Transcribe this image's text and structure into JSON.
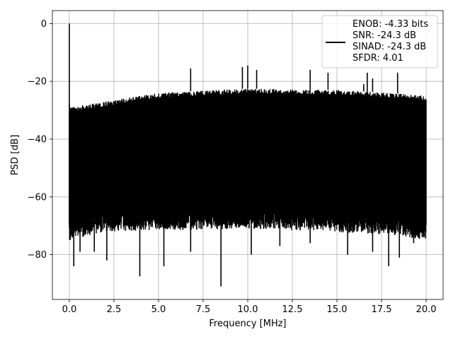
{
  "chart_data": {
    "type": "line",
    "title": "",
    "xlabel": "Frequency [MHz]",
    "ylabel": "PSD [dB]",
    "xlim": [
      -0.95,
      20.95
    ],
    "ylim": [
      -95.5,
      4.5
    ],
    "xticks": [
      0.0,
      2.5,
      5.0,
      7.5,
      10.0,
      12.5,
      15.0,
      17.5,
      20.0
    ],
    "xtick_labels": [
      "0.0",
      "2.5",
      "5.0",
      "7.5",
      "10.0",
      "12.5",
      "15.0",
      "17.5",
      "20.0"
    ],
    "yticks": [
      0,
      -20,
      -40,
      -60,
      -80
    ],
    "ytick_labels": [
      "0",
      "−20",
      "−40",
      "−60",
      "−80"
    ],
    "grid": true,
    "legend_position": "top-right",
    "line_color": "#000000",
    "series": [
      {
        "legend_lines": [
          "ENOB: -4.33 bits",
          "SNR: -24.3 dB",
          "SINAD: -24.3 dB",
          "SFDR: 4.01"
        ],
        "noise_band": {
          "x_range": [
            0.0,
            20.0
          ],
          "upper_envelope": [
            [
              0.0,
              -29
            ],
            [
              2.0,
              -27
            ],
            [
              5.0,
              -24
            ],
            [
              10.0,
              -22.5
            ],
            [
              15.0,
              -23
            ],
            [
              18.0,
              -24
            ],
            [
              20.0,
              -25
            ]
          ],
          "lower_envelope": [
            [
              0.0,
              -70
            ],
            [
              2.0,
              -67
            ],
            [
              10.0,
              -66
            ],
            [
              18.0,
              -68
            ],
            [
              20.0,
              -70
            ]
          ]
        },
        "peaks": [
          [
            0.0,
            0.0
          ],
          [
            6.8,
            -15.5
          ],
          [
            9.7,
            -15
          ],
          [
            10.0,
            -14.5
          ],
          [
            10.5,
            -16
          ],
          [
            13.5,
            -16
          ],
          [
            14.5,
            -17
          ],
          [
            16.7,
            -17
          ],
          [
            17.0,
            -19
          ],
          [
            18.4,
            -17
          ],
          [
            16.5,
            -21
          ]
        ],
        "dips": [
          [
            0.25,
            -84
          ],
          [
            0.6,
            -79
          ],
          [
            1.4,
            -79
          ],
          [
            2.1,
            -82
          ],
          [
            3.95,
            -87.5
          ],
          [
            5.3,
            -84
          ],
          [
            6.8,
            -79
          ],
          [
            8.5,
            -91
          ],
          [
            10.2,
            -80
          ],
          [
            11.8,
            -77
          ],
          [
            13.5,
            -76
          ],
          [
            15.6,
            -80
          ],
          [
            17.0,
            -79
          ],
          [
            17.9,
            -84
          ],
          [
            18.5,
            -81
          ],
          [
            19.3,
            -76
          ]
        ]
      }
    ]
  }
}
